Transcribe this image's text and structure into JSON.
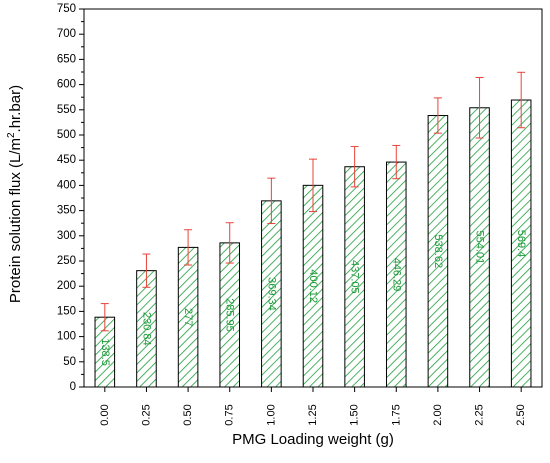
{
  "chart_data": {
    "type": "bar",
    "title": "",
    "xlabel": "PMG Loading weight (g)",
    "ylabel_main": "Protein solution flux (L/m",
    "ylabel_sup": "2",
    "ylabel_end": ".hr.bar)",
    "ylim": [
      0,
      750
    ],
    "yticks": [
      0,
      50,
      100,
      150,
      200,
      250,
      300,
      350,
      400,
      450,
      500,
      550,
      600,
      650,
      700,
      750
    ],
    "categories": [
      "0.00",
      "0.25",
      "0.50",
      "0.75",
      "1.00",
      "1.25",
      "1.50",
      "1.75",
      "2.00",
      "2.25",
      "2.50"
    ],
    "values": [
      138.5,
      230.84,
      277,
      285.95,
      369.34,
      400.12,
      437.05,
      446.29,
      538.62,
      554.01,
      569.4
    ],
    "value_labels": [
      "138.5",
      "230.84",
      "277",
      "285.95",
      "369.34",
      "400.12",
      "437.05",
      "446.29",
      "538.62",
      "554.01",
      "569.4"
    ],
    "errors": [
      27,
      33,
      35,
      40,
      45,
      52,
      40,
      33,
      35,
      60,
      55
    ],
    "grid": false,
    "colors": {
      "hatch": "#1e9e3c",
      "bar_outline": "#000000",
      "error_bar": "#e8433a",
      "value_label": "#1a9a36"
    }
  }
}
